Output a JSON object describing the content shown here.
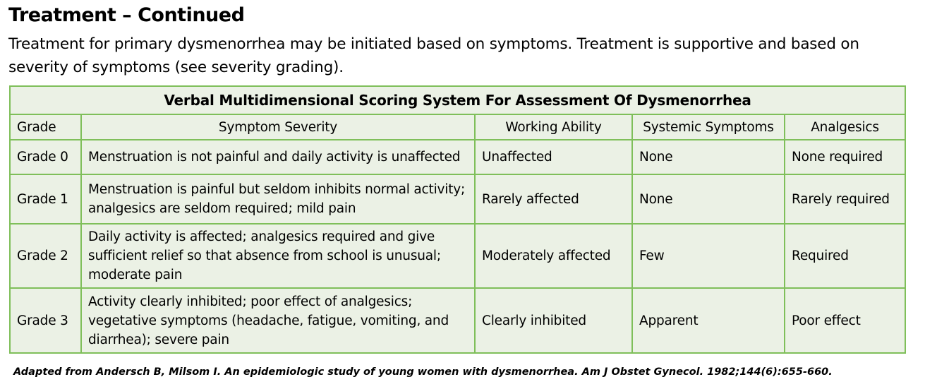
{
  "heading": "Treatment – Continued",
  "intro": "Treatment for primary dysmenorrhea may be initiated based on symptoms. Treatment is supportive and based on severity of symptoms (see severity grading).",
  "table": {
    "caption": "Verbal Multidimensional Scoring System For Assessment Of Dysmenorrhea",
    "columns": [
      "Grade",
      "Symptom Severity",
      "Working Ability",
      "Systemic Symptoms",
      "Analgesics"
    ],
    "rows": [
      [
        "Grade 0",
        "Menstruation is not painful and daily activity is unaffected",
        "Unaffected",
        "None",
        "None required"
      ],
      [
        "Grade 1",
        "Menstruation is painful but seldom inhibits normal activity; analgesics are seldom required; mild pain",
        "Rarely affected",
        "None",
        "Rarely required"
      ],
      [
        "Grade 2",
        "Daily activity is affected; analgesics required and give sufficient relief so that absence from school is unusual; moderate pain",
        "Moderately affected",
        "Few",
        "Required"
      ],
      [
        "Grade 3",
        "Activity clearly inhibited; poor effect of analgesics; vegetative symptoms (headache, fatigue, vomiting, and diarrhea); severe pain",
        "Clearly inhibited",
        "Apparent",
        "Poor effect"
      ]
    ]
  },
  "citation": "Adapted from Andersch B, Milsom I. An epidemiologic study of young women with dysmenorrhea. Am J Obstet Gynecol. 1982;144(6):655-660.",
  "colors": {
    "border": "#7fbf5a",
    "cell_background": "#ebf1e5"
  }
}
